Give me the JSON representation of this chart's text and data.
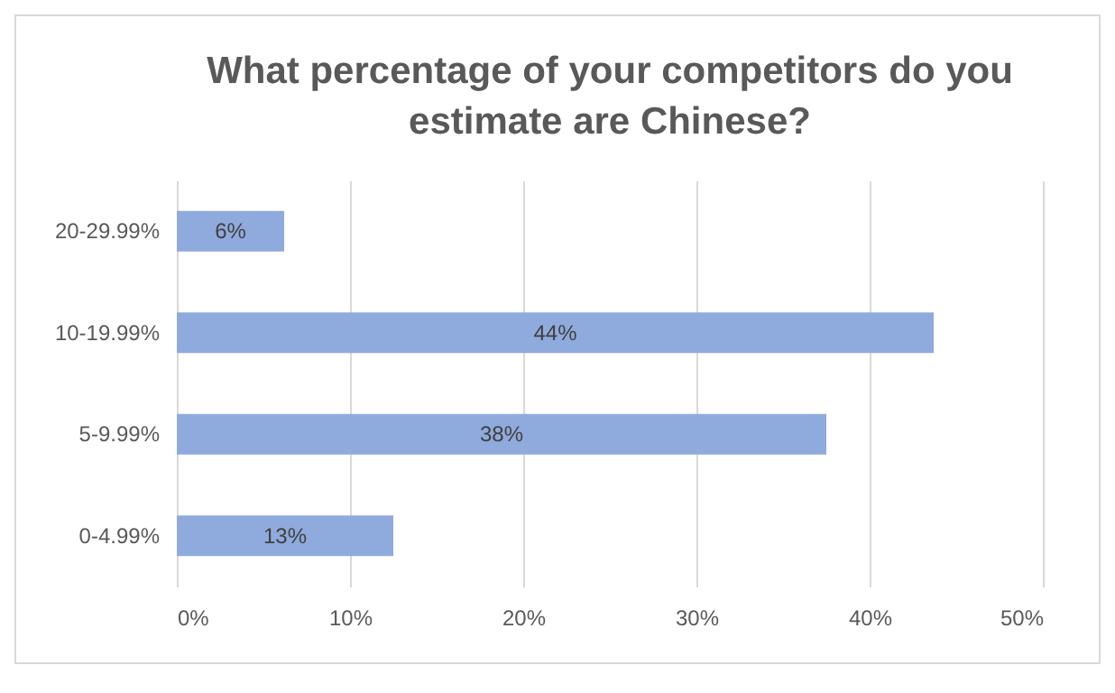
{
  "chart_data": {
    "type": "bar",
    "orientation": "horizontal",
    "title": "What percentage of your competitors do you estimate are Chinese?",
    "categories": [
      "20-29.99%",
      "10-19.99%",
      "5-9.99%",
      "0-4.99%"
    ],
    "values": [
      6.2,
      43.7,
      37.5,
      12.5
    ],
    "value_labels": [
      "6%",
      "44%",
      "38%",
      "13%"
    ],
    "color": "#8faadc",
    "xlim": [
      0,
      50
    ],
    "xticks": [
      {
        "value": 0,
        "label": "0%"
      },
      {
        "value": 10,
        "label": "10%"
      },
      {
        "value": 20,
        "label": "20%"
      },
      {
        "value": 30,
        "label": "30%"
      },
      {
        "value": 40,
        "label": "40%"
      },
      {
        "value": 50,
        "label": "50%"
      }
    ],
    "grid": "x"
  }
}
